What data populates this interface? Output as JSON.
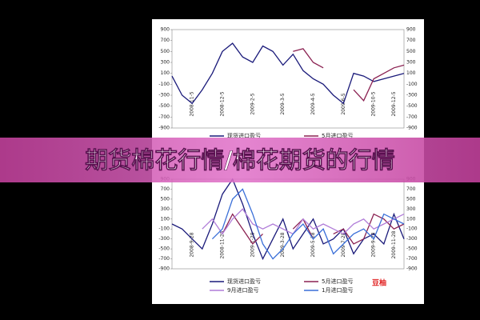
{
  "banner_title": "期货棉花行情/棉花期货的行情",
  "watermark": "豆柚",
  "chart_data": [
    {
      "type": "line",
      "categories": [
        null,
        null,
        "2008-11-5",
        null,
        null,
        "2008-12-5",
        null,
        null,
        "2009-2-5",
        null,
        null,
        "2009-3-5",
        null,
        null,
        "2009-4-5",
        null,
        null,
        "2009-6-5",
        null,
        null,
        "2009-10-5",
        null,
        "2009-12-5",
        null
      ],
      "series": [
        {
          "name": "现货进口盈亏",
          "color": "#1a1a7a",
          "values": [
            50,
            -300,
            -450,
            -200,
            100,
            500,
            650,
            400,
            300,
            600,
            500,
            250,
            450,
            150,
            0,
            -100,
            -300,
            -450,
            100,
            50,
            -50,
            0,
            50,
            100
          ]
        },
        {
          "name": "5月进口盈亏",
          "color": "#8b2252",
          "values": [
            null,
            null,
            null,
            null,
            null,
            null,
            null,
            null,
            null,
            null,
            null,
            null,
            500,
            550,
            300,
            200,
            null,
            null,
            -200,
            -400,
            0,
            100,
            200,
            250
          ]
        }
      ],
      "ylim": [
        -900,
        900
      ],
      "yticks": [
        -900,
        -700,
        -500,
        -300,
        -100,
        100,
        300,
        500,
        700,
        900
      ]
    },
    {
      "type": "line",
      "categories": [
        null,
        null,
        "2008-9-28",
        null,
        null,
        "2008-11-28",
        null,
        null,
        "2009-1-28",
        null,
        null,
        "2009-3-28",
        null,
        null,
        "2009-5-28",
        null,
        null,
        "2009-7-28",
        null,
        null,
        "2009-9-28",
        null,
        "2009-11-28",
        null
      ],
      "series": [
        {
          "name": "现货进口盈亏",
          "color": "#1a1a7a",
          "values": [
            0,
            -100,
            -300,
            -500,
            0,
            600,
            900,
            400,
            -200,
            -700,
            -300,
            100,
            -500,
            -200,
            100,
            -400,
            -300,
            -100,
            -600,
            -300,
            -200,
            -400,
            200,
            -300
          ]
        },
        {
          "name": "5月进口盈亏",
          "color": "#8b2252",
          "values": [
            null,
            null,
            null,
            null,
            null,
            -200,
            200,
            -100,
            -400,
            -200,
            null,
            null,
            -100,
            100,
            -300,
            null,
            -200,
            -100,
            -400,
            -300,
            200,
            100,
            -100,
            0
          ]
        },
        {
          "name": "9月进口盈亏",
          "color": "#b07cd8",
          "values": [
            null,
            null,
            null,
            -100,
            100,
            -200,
            100,
            300,
            0,
            -100,
            0,
            -100,
            -200,
            100,
            -100,
            0,
            -100,
            -200,
            0,
            100,
            -100,
            0,
            100,
            200
          ]
        },
        {
          "name": "1月进口盈亏",
          "color": "#3a6fd8",
          "values": [
            null,
            null,
            null,
            null,
            -300,
            -100,
            500,
            700,
            200,
            -400,
            -700,
            -500,
            -200,
            0,
            -300,
            -100,
            -600,
            -400,
            -200,
            -100,
            -300,
            200,
            100,
            0
          ]
        }
      ],
      "ylim": [
        -900,
        900
      ],
      "yticks": [
        -900,
        -700,
        -500,
        -300,
        -100,
        100,
        300,
        500,
        700,
        900
      ]
    }
  ]
}
